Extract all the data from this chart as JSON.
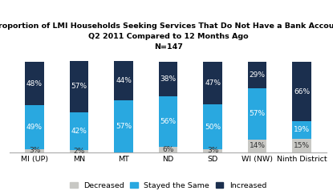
{
  "title_lines": [
    "Proportion of LMI Households Seeking Services That Do Not Have a Bank Account",
    "Q2 2011 Compared to 12 Months Ago",
    "N=147"
  ],
  "categories": [
    "MI (UP)",
    "MN",
    "MT",
    "ND",
    "SD",
    "WI (NW)",
    "Ninth District"
  ],
  "decreased": [
    3,
    2,
    0,
    6,
    3,
    14,
    15
  ],
  "stayed_same": [
    49,
    42,
    57,
    56,
    50,
    57,
    19
  ],
  "increased": [
    48,
    57,
    44,
    38,
    47,
    29,
    66
  ],
  "color_decreased": "#c8c8c4",
  "color_stayed": "#29a8e0",
  "color_increased": "#1b2f4e",
  "bar_width": 0.42,
  "ylim": [
    0,
    108
  ],
  "legend_labels": [
    "Decreased",
    "Stayed the Same",
    "Increased"
  ],
  "label_fontsize": 6.5,
  "tick_fontsize": 6.8,
  "title_fontsize": 6.8
}
